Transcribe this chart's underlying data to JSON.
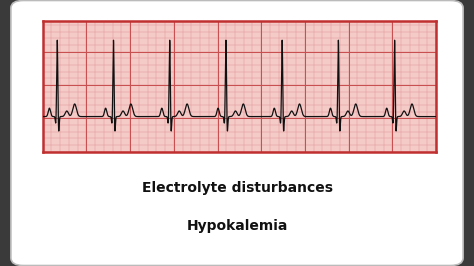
{
  "bg_color": "#ffffff",
  "ecg_bg_color": "#f5cbc8",
  "ecg_grid_minor_color": "#e09898",
  "ecg_grid_major_color": "#c85050",
  "ecg_border_color": "#c03030",
  "ecg_line_color": "#111111",
  "title_line1": "Electrolyte disturbances",
  "title_line2": "Hypokalemia",
  "title_fontsize": 10,
  "title_fontweight": "bold",
  "outer_bg": "#3a3a3a",
  "card_edge_color": "#bbbbbb",
  "num_beats": 7,
  "r_amplitude": 0.55,
  "p_amplitude": 0.06,
  "q_amplitude": -0.06,
  "s_amplitude": -0.12,
  "t_amplitude": 0.04,
  "u_amplitude": 0.09
}
